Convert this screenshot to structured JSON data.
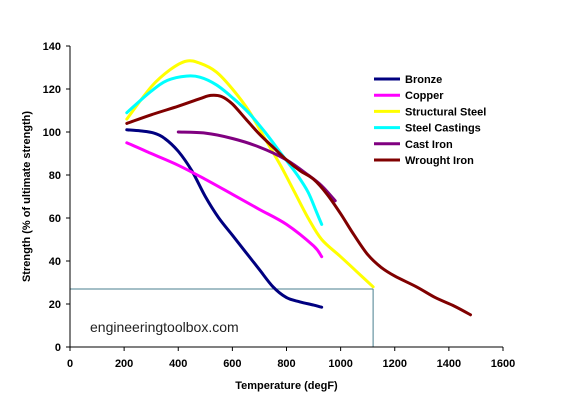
{
  "chart_data": {
    "type": "line",
    "title": "",
    "xlabel": "Temperature (degF)",
    "ylabel": "Strength (% of ultimate strength)",
    "xlim": [
      0,
      1600
    ],
    "ylim": [
      0,
      140
    ],
    "x_ticks": [
      "0",
      "200",
      "400",
      "600",
      "800",
      "1000",
      "1200",
      "1400",
      "1600"
    ],
    "y_ticks": [
      "0",
      "20",
      "40",
      "60",
      "80",
      "100",
      "120",
      "140"
    ],
    "grid": false,
    "legend_position": "top-right",
    "series": [
      {
        "name": "Bronze",
        "color": "#000080",
        "points": [
          [
            210,
            101
          ],
          [
            260,
            100.5
          ],
          [
            310,
            99.5
          ],
          [
            350,
            97
          ],
          [
            400,
            91
          ],
          [
            450,
            82
          ],
          [
            500,
            70
          ],
          [
            550,
            60
          ],
          [
            600,
            52
          ],
          [
            650,
            44
          ],
          [
            700,
            36
          ],
          [
            750,
            28
          ],
          [
            800,
            23
          ],
          [
            850,
            21
          ],
          [
            900,
            19.5
          ],
          [
            930,
            18.5
          ]
        ]
      },
      {
        "name": "Copper",
        "color": "#ff00ff",
        "points": [
          [
            210,
            95
          ],
          [
            300,
            90
          ],
          [
            400,
            84.5
          ],
          [
            500,
            78
          ],
          [
            600,
            71
          ],
          [
            700,
            64
          ],
          [
            800,
            57
          ],
          [
            900,
            47
          ],
          [
            930,
            42
          ]
        ]
      },
      {
        "name": "Structural Steel",
        "color": "#ffff00",
        "points": [
          [
            210,
            106
          ],
          [
            300,
            121
          ],
          [
            370,
            129
          ],
          [
            430,
            133
          ],
          [
            480,
            132
          ],
          [
            540,
            128
          ],
          [
            600,
            120
          ],
          [
            660,
            110
          ],
          [
            720,
            97
          ],
          [
            780,
            84
          ],
          [
            830,
            72
          ],
          [
            880,
            60
          ],
          [
            930,
            50
          ],
          [
            1000,
            42
          ],
          [
            1060,
            35
          ],
          [
            1120,
            28
          ]
        ]
      },
      {
        "name": "Steel Castings",
        "color": "#00ffff",
        "points": [
          [
            210,
            109
          ],
          [
            300,
            119
          ],
          [
            360,
            124
          ],
          [
            430,
            126
          ],
          [
            480,
            125.5
          ],
          [
            540,
            122
          ],
          [
            600,
            116
          ],
          [
            660,
            109
          ],
          [
            720,
            100
          ],
          [
            780,
            90
          ],
          [
            840,
            80
          ],
          [
            880,
            72
          ],
          [
            910,
            63
          ],
          [
            930,
            57
          ]
        ]
      },
      {
        "name": "Cast Iron",
        "color": "#800080",
        "points": [
          [
            400,
            100
          ],
          [
            500,
            99.5
          ],
          [
            600,
            97
          ],
          [
            700,
            93
          ],
          [
            800,
            87
          ],
          [
            880,
            80
          ],
          [
            930,
            75
          ],
          [
            980,
            68
          ]
        ]
      },
      {
        "name": "Wrought Iron",
        "color": "#800000",
        "points": [
          [
            210,
            104
          ],
          [
            300,
            108
          ],
          [
            400,
            112
          ],
          [
            480,
            115.5
          ],
          [
            520,
            117
          ],
          [
            560,
            116.5
          ],
          [
            600,
            113
          ],
          [
            650,
            106
          ],
          [
            700,
            99
          ],
          [
            750,
            93
          ],
          [
            800,
            87
          ],
          [
            850,
            82
          ],
          [
            900,
            78
          ],
          [
            950,
            71
          ],
          [
            1000,
            62
          ],
          [
            1050,
            52
          ],
          [
            1100,
            43
          ],
          [
            1150,
            37
          ],
          [
            1200,
            33
          ],
          [
            1280,
            28
          ],
          [
            1350,
            23
          ],
          [
            1420,
            19
          ],
          [
            1480,
            15
          ]
        ]
      }
    ],
    "reference_lines": {
      "color": "#4a7f8f",
      "y_value": 27,
      "x_value": 1120
    },
    "watermark": "engineeringtoolbox.com"
  }
}
